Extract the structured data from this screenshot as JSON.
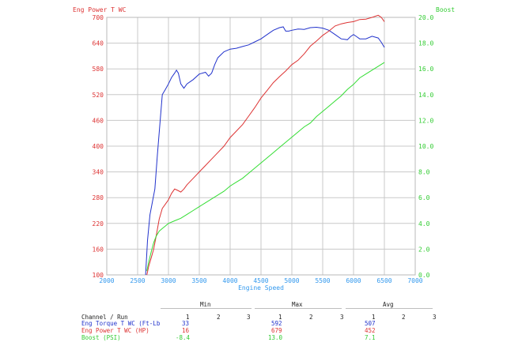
{
  "chart_data": {
    "type": "line",
    "xlabel": "Engine Speed",
    "ylabel_left": "Eng Power T WC",
    "ylabel_right": "Boost",
    "xlim": [
      2000,
      7000
    ],
    "ylim_left": [
      100,
      700
    ],
    "ylim_right": [
      0.0,
      20.0
    ],
    "grid": true,
    "x_ticks": [
      "2000",
      "2500",
      "3000",
      "3500",
      "4000",
      "4500",
      "5000",
      "5500",
      "6000",
      "6500",
      "7000"
    ],
    "y_left_ticks": [
      "100",
      "160",
      "220",
      "280",
      "340",
      "400",
      "460",
      "520",
      "580",
      "640",
      "700"
    ],
    "y_right_ticks": [
      "0.0",
      "2.0",
      "4.0",
      "6.0",
      "8.0",
      "10.0",
      "12.0",
      "14.0",
      "16.0",
      "18.0",
      "20.0"
    ],
    "series": [
      {
        "name": "Eng Torque T WC (Ft-Lb",
        "color": "#2233cc",
        "axis": "left",
        "x": [
          2630,
          2660,
          2700,
          2740,
          2780,
          2820,
          2860,
          2900,
          2950,
          3000,
          3050,
          3100,
          3130,
          3160,
          3200,
          3250,
          3300,
          3400,
          3500,
          3600,
          3650,
          3700,
          3750,
          3800,
          3900,
          4000,
          4100,
          4200,
          4300,
          4400,
          4500,
          4600,
          4700,
          4800,
          4860,
          4900,
          4950,
          5000,
          5100,
          5200,
          5300,
          5400,
          5500,
          5600,
          5700,
          5800,
          5900,
          5950,
          6000,
          6050,
          6100,
          6200,
          6300,
          6400,
          6450,
          6500
        ],
        "y": [
          100,
          180,
          240,
          270,
          300,
          380,
          450,
          520,
          532,
          545,
          560,
          570,
          577,
          570,
          545,
          535,
          545,
          555,
          568,
          572,
          563,
          570,
          590,
          606,
          620,
          626,
          628,
          632,
          636,
          643,
          650,
          660,
          670,
          676,
          678,
          668,
          668,
          670,
          673,
          672,
          676,
          677,
          675,
          670,
          660,
          650,
          648,
          655,
          660,
          655,
          650,
          650,
          656,
          652,
          642,
          630
        ]
      },
      {
        "name": "Eng Power T WC (HP)",
        "color": "#dd3333",
        "axis": "left",
        "x": [
          2650,
          2680,
          2720,
          2760,
          2800,
          2850,
          2900,
          2950,
          3000,
          3050,
          3100,
          3150,
          3200,
          3250,
          3300,
          3400,
          3500,
          3600,
          3700,
          3800,
          3900,
          4000,
          4100,
          4200,
          4300,
          4400,
          4500,
          4600,
          4700,
          4800,
          4900,
          5000,
          5100,
          5200,
          5300,
          5400,
          5500,
          5600,
          5700,
          5800,
          5900,
          6000,
          6100,
          6200,
          6300,
          6400,
          6450,
          6500
        ],
        "y": [
          100,
          120,
          140,
          160,
          190,
          230,
          255,
          265,
          275,
          290,
          300,
          297,
          293,
          300,
          310,
          325,
          340,
          355,
          370,
          385,
          400,
          420,
          435,
          450,
          470,
          490,
          512,
          530,
          548,
          562,
          575,
          590,
          600,
          615,
          633,
          645,
          658,
          668,
          680,
          685,
          688,
          690,
          695,
          696,
          700,
          705,
          700,
          690
        ]
      },
      {
        "name": "Boost (PSI)",
        "color": "#33dd33",
        "axis": "right",
        "x": [
          2650,
          2680,
          2720,
          2760,
          2800,
          2850,
          2900,
          2950,
          3000,
          3100,
          3200,
          3300,
          3400,
          3500,
          3600,
          3700,
          3800,
          3900,
          4000,
          4100,
          4200,
          4300,
          4400,
          4500,
          4600,
          4700,
          4800,
          4900,
          5000,
          5100,
          5200,
          5300,
          5400,
          5500,
          5600,
          5700,
          5800,
          5900,
          6000,
          6100,
          6200,
          6300,
          6400,
          6500
        ],
        "y": [
          0.3,
          1.0,
          1.8,
          2.5,
          3.0,
          3.4,
          3.6,
          3.8,
          4.0,
          4.2,
          4.4,
          4.7,
          5.0,
          5.3,
          5.6,
          5.9,
          6.2,
          6.5,
          6.9,
          7.2,
          7.5,
          7.9,
          8.3,
          8.7,
          9.1,
          9.5,
          9.9,
          10.3,
          10.7,
          11.1,
          11.5,
          11.8,
          12.3,
          12.7,
          13.1,
          13.5,
          13.9,
          14.4,
          14.8,
          15.3,
          15.6,
          15.9,
          16.2,
          16.5
        ]
      }
    ]
  },
  "stats_table": {
    "header_channel": "Channel / Run",
    "groups": [
      "Min",
      "Max",
      "Avg"
    ],
    "runs": [
      "1",
      "2",
      "3"
    ],
    "rows": [
      {
        "label": "Eng Torque T WC (Ft-Lb",
        "color": "#2233cc",
        "min": "33",
        "max": "592",
        "avg": "507"
      },
      {
        "label": "Eng Power T WC (HP)",
        "color": "#dd3333",
        "min": "16",
        "max": "679",
        "avg": "452"
      },
      {
        "label": "Boost (PSI)",
        "color": "#33dd33",
        "min": "-8.4",
        "max": "13.0",
        "avg": "7.1"
      }
    ]
  }
}
